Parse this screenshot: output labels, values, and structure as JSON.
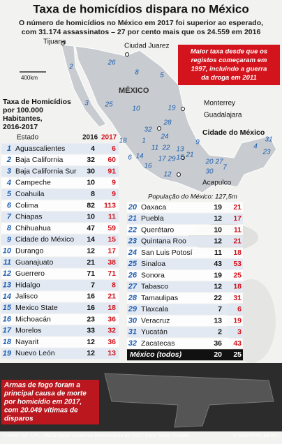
{
  "title": "Taxa de homicídios dispara no México",
  "subtitle": [
    "O número de homicídios no México em 2017 foi superior ao esperado,",
    "com 31.174 assassinatos – 27 por cento mais que os 24.559 em 2016"
  ],
  "map": {
    "country": "MÉXICO",
    "scale": "400km",
    "cities": [
      "Tijuana",
      "Ciudad Juarez",
      "Monterrey",
      "Guadalajara",
      "Cidade do México",
      "Acapulco"
    ],
    "state_numbers": [
      2,
      3,
      26,
      8,
      5,
      25,
      10,
      19,
      28,
      32,
      24,
      1,
      18,
      11,
      14,
      22,
      13,
      9,
      15,
      16,
      17,
      21,
      6,
      29,
      30,
      12,
      20,
      7,
      27,
      4,
      31,
      23
    ],
    "callout": [
      "Maior taxa desde que os",
      "registos começaram em",
      "1997, incluindo a guerra",
      "da droga em 2011"
    ]
  },
  "table": {
    "title": [
      "Taxa de Homicídios",
      "por 100.000",
      "Habitantes,",
      "2016-2017"
    ],
    "header": [
      "Estado",
      "2016",
      "2017"
    ],
    "rows": [
      [
        1,
        "Aguascalientes",
        4,
        6
      ],
      [
        2,
        "Baja California",
        32,
        60
      ],
      [
        3,
        "Baja California Sur",
        30,
        91
      ],
      [
        4,
        "Campeche",
        10,
        9
      ],
      [
        5,
        "Coahuila",
        8,
        9
      ],
      [
        6,
        "Colima",
        82,
        113
      ],
      [
        7,
        "Chiapas",
        10,
        11
      ],
      [
        8,
        "Chihuahua",
        47,
        59
      ],
      [
        9,
        "Cidade do México",
        14,
        15
      ],
      [
        10,
        "Durango",
        12,
        17
      ],
      [
        11,
        "Guanajuato",
        21,
        38
      ],
      [
        12,
        "Guerrero",
        71,
        71
      ],
      [
        13,
        "Hidalgo",
        7,
        8
      ],
      [
        14,
        "Jalisco",
        16,
        21
      ],
      [
        15,
        "Mexico State",
        16,
        18
      ],
      [
        16,
        "Michoacán",
        23,
        36
      ],
      [
        17,
        "Morelos",
        33,
        32
      ],
      [
        18,
        "Nayarit",
        12,
        36
      ],
      [
        19,
        "Nuevo León",
        12,
        13
      ],
      [
        20,
        "Oaxaca",
        19,
        21
      ],
      [
        21,
        "Puebla",
        12,
        17
      ],
      [
        22,
        "Querétaro",
        10,
        11
      ],
      [
        23,
        "Quintana Roo",
        12,
        21
      ],
      [
        24,
        "San Luis Potosí",
        11,
        18
      ],
      [
        25,
        "Sinaloa",
        43,
        53
      ],
      [
        26,
        "Sonora",
        19,
        25
      ],
      [
        27,
        "Tabasco",
        12,
        18
      ],
      [
        28,
        "Tamaulipas",
        22,
        31
      ],
      [
        29,
        "Tlaxcala",
        7,
        6
      ],
      [
        30,
        "Veracruz",
        13,
        19
      ],
      [
        31,
        "Yucatán",
        2,
        3
      ],
      [
        32,
        "Zacatecas",
        36,
        43
      ]
    ],
    "total": [
      "México (todos)",
      20,
      25
    ],
    "population": "População do México: 127,5m"
  },
  "note": [
    "Armas de fogo foram a",
    "principal causa de morte",
    "por homicídio em 2017,",
    "com 20.049 vítimas de",
    "disparos"
  ],
  "footer": {
    "sources": "Fontes: AP, UPI, INEGI  Nota: Números preliminares de 2017  Foto: Getty Images",
    "credit": "© GRAPHIC NEWS"
  }
}
